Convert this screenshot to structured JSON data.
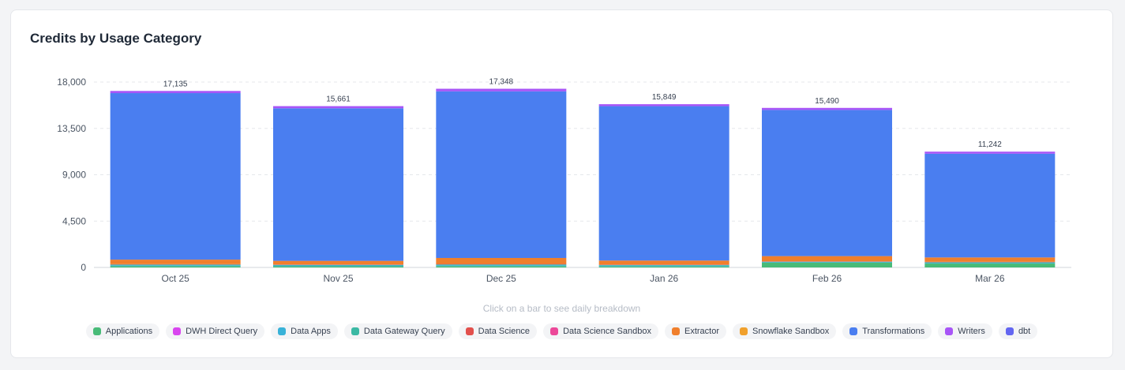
{
  "page": {
    "title": "Credits by Usage Category",
    "hint": "Click on a bar to see daily breakdown"
  },
  "chart_data": {
    "type": "bar",
    "stacked": true,
    "title": "Credits by Usage Category",
    "xlabel": "",
    "ylabel": "",
    "ylim": [
      0,
      18000
    ],
    "yticks": [
      0,
      4500,
      9000,
      13500,
      18000
    ],
    "ytick_labels": [
      "0",
      "4,500",
      "9,000",
      "13,500",
      "18,000"
    ],
    "grid": true,
    "legend_position": "bottom",
    "categories": [
      "Oct 25",
      "Nov 25",
      "Dec 25",
      "Jan 26",
      "Feb 26",
      "Mar 26"
    ],
    "totals": [
      17135,
      15661,
      17348,
      15849,
      15490,
      11242
    ],
    "total_labels": [
      "17,135",
      "15,661",
      "17,348",
      "15,849",
      "15,490",
      "11,242"
    ],
    "series": [
      {
        "name": "Applications",
        "color": "#48bb78",
        "values": [
          120,
          110,
          130,
          100,
          460,
          380
        ]
      },
      {
        "name": "DWH Direct Query",
        "color": "#d946ef",
        "values": [
          0,
          0,
          0,
          0,
          0,
          0
        ]
      },
      {
        "name": "Data Apps",
        "color": "#38b2d8",
        "values": [
          90,
          80,
          90,
          80,
          60,
          70
        ]
      },
      {
        "name": "Data Gateway Query",
        "color": "#3bb9a4",
        "values": [
          70,
          60,
          70,
          60,
          40,
          60
        ]
      },
      {
        "name": "Data Science",
        "color": "#e2504c",
        "values": [
          40,
          40,
          50,
          40,
          40,
          40
        ]
      },
      {
        "name": "Data Science Sandbox",
        "color": "#ec4899",
        "values": [
          0,
          0,
          0,
          0,
          0,
          0
        ]
      },
      {
        "name": "Extractor",
        "color": "#f07f2c",
        "values": [
          440,
          350,
          580,
          390,
          500,
          420
        ]
      },
      {
        "name": "Snowflake Sandbox",
        "color": "#f0a02c",
        "values": [
          0,
          0,
          0,
          0,
          0,
          0
        ]
      },
      {
        "name": "Transformations",
        "color": "#4a7ef0",
        "values": [
          16165,
          14811,
          16178,
          14989,
          14190,
          10072
        ]
      },
      {
        "name": "Writers",
        "color": "#a855f7",
        "values": [
          210,
          210,
          250,
          190,
          200,
          200
        ]
      },
      {
        "name": "dbt",
        "color": "#6366f1",
        "values": [
          0,
          0,
          0,
          0,
          0,
          0
        ]
      }
    ]
  }
}
